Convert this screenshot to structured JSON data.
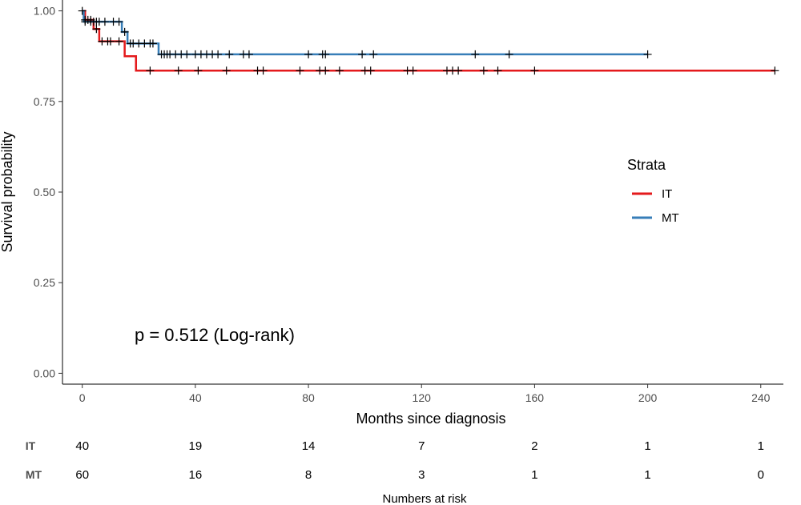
{
  "chart_data": {
    "type": "line",
    "xlabel": "Months since diagnosis",
    "ylabel": "Survival probability",
    "xlim": [
      -7,
      248
    ],
    "ylim": [
      -0.03,
      1.03
    ],
    "xticks": [
      0,
      40,
      80,
      120,
      160,
      200,
      240
    ],
    "yticks": [
      0,
      0.25,
      0.5,
      0.75,
      1
    ],
    "ytick_labels": [
      "0.00",
      "0.25",
      "0.50",
      "0.75",
      "1.00"
    ],
    "grid": false,
    "legend": {
      "title": "Strata",
      "placement": "right",
      "entries": [
        "IT",
        "MT"
      ]
    },
    "annotation": "p = 0.512 (Log-rank)",
    "series": [
      {
        "name": "IT",
        "color": "#e41a1c",
        "steps": [
          [
            0,
            1.0
          ],
          [
            1,
            0.975
          ],
          [
            4,
            0.95
          ],
          [
            6,
            0.916
          ],
          [
            15,
            0.875
          ],
          [
            19,
            0.835
          ],
          [
            245,
            0.835
          ]
        ],
        "censor": [
          1,
          2,
          3,
          5,
          7,
          9,
          10,
          13,
          24,
          34,
          41,
          51,
          62,
          64,
          77,
          84,
          86,
          91,
          100,
          102,
          115,
          117,
          129,
          131,
          133,
          142,
          147,
          160,
          245
        ]
      },
      {
        "name": "MT",
        "color": "#377eb8",
        "steps": [
          [
            0,
            1.0
          ],
          [
            0.5,
            0.97
          ],
          [
            14,
            0.942
          ],
          [
            16,
            0.91
          ],
          [
            27,
            0.88
          ],
          [
            200,
            0.88
          ]
        ],
        "censor": [
          0,
          1,
          3,
          4,
          5,
          6,
          8,
          11,
          13,
          15,
          17,
          18,
          20,
          22,
          24,
          25,
          28,
          29,
          30,
          31,
          33,
          35,
          37,
          40,
          42,
          44,
          46,
          48,
          52,
          57,
          59,
          80,
          85,
          86,
          99,
          103,
          139,
          151,
          200
        ]
      }
    ],
    "risk_table": {
      "title": "Numbers at risk",
      "times": [
        0,
        40,
        80,
        120,
        160,
        200,
        240
      ],
      "rows": [
        {
          "group": "IT",
          "values": [
            40,
            19,
            14,
            7,
            2,
            1,
            1
          ]
        },
        {
          "group": "MT",
          "values": [
            60,
            16,
            8,
            3,
            1,
            1,
            0
          ]
        }
      ]
    }
  }
}
